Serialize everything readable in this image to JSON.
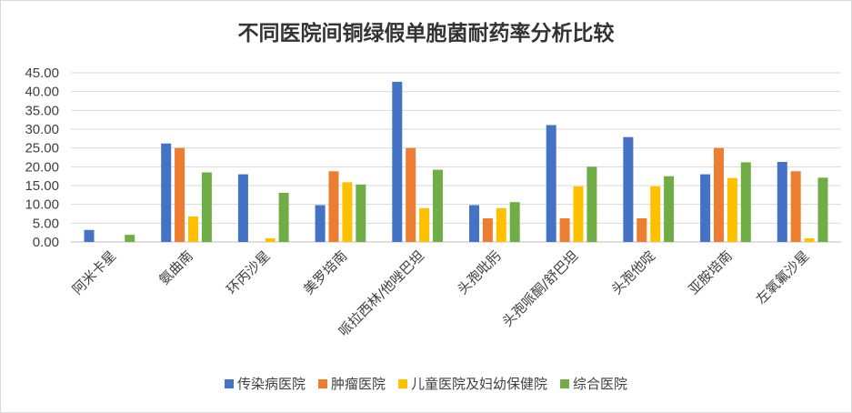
{
  "chart_data": {
    "type": "bar",
    "title": "不同医院间铜绿假单胞菌耐药率分析比较",
    "categories": [
      "阿米卡星",
      "氨曲南",
      "环丙沙星",
      "美罗培南",
      "哌拉西林/他唑巴坦",
      "头孢吡肟",
      "头孢哌酮/舒巴坦",
      "头孢他啶",
      "亚胺培南",
      "左氧氟沙星"
    ],
    "series": [
      {
        "name": "传染病医院",
        "color": "#4472C4",
        "values": [
          3.2,
          26.2,
          18.0,
          9.8,
          42.6,
          9.8,
          31.1,
          27.9,
          18.0,
          21.3
        ]
      },
      {
        "name": "肿瘤医院",
        "color": "#ED7D31",
        "values": [
          0,
          25.0,
          0,
          18.8,
          25.0,
          6.3,
          6.3,
          6.3,
          25.0,
          18.8
        ]
      },
      {
        "name": "儿童医院及妇幼保健院",
        "color": "#FFC000",
        "values": [
          0,
          6.8,
          1.0,
          15.9,
          9.0,
          9.0,
          14.8,
          14.8,
          17.0,
          1.0
        ]
      },
      {
        "name": "综合医院",
        "color": "#70AD47",
        "values": [
          1.9,
          18.5,
          13.1,
          15.3,
          19.2,
          10.6,
          20.0,
          17.5,
          21.2,
          17.1
        ]
      }
    ],
    "y_ticks": [
      "0.00",
      "5.00",
      "10.00",
      "15.00",
      "20.00",
      "25.00",
      "30.00",
      "35.00",
      "40.00",
      "45.00"
    ],
    "ylim": [
      0,
      45
    ],
    "xlabel": "",
    "ylabel": "",
    "grid": true,
    "legend_position": "bottom"
  }
}
